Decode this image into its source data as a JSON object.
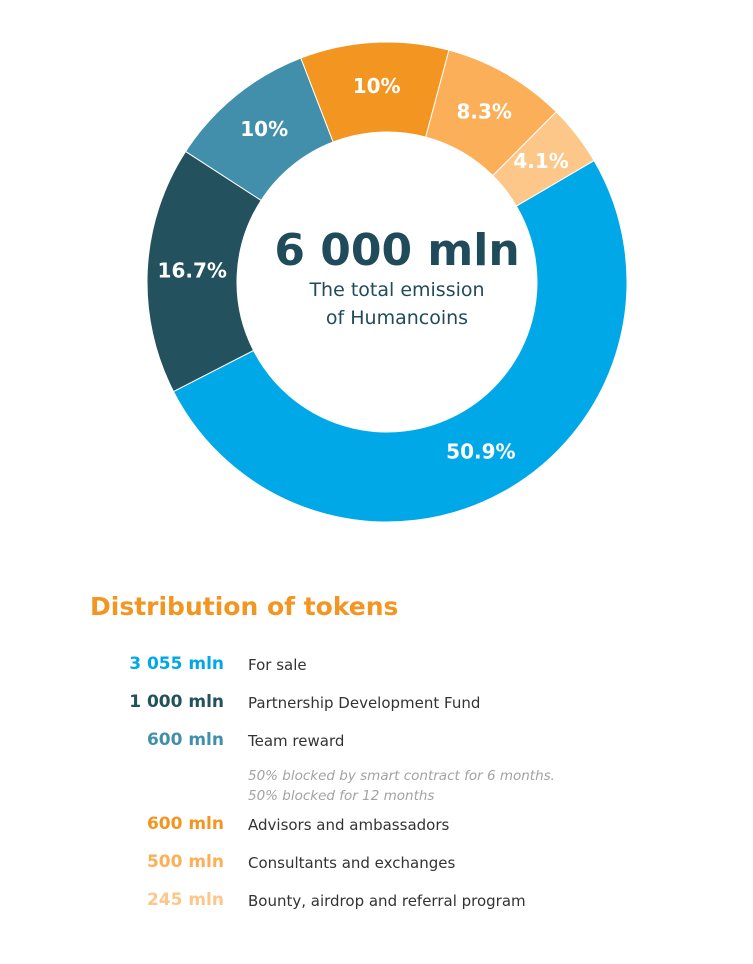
{
  "center": {
    "value": "6 000 mln",
    "line1": "The total emission",
    "line2": "of Humancoins"
  },
  "colors": {
    "for_sale": "#00a8e8",
    "partnership": "#23515e",
    "team": "#418fab",
    "advisors": "#f39521",
    "consultants": "#fbaf58",
    "bounty": "#fdc78a",
    "heading": "#f39521",
    "center_text": "#1f4b5a"
  },
  "chart_data": {
    "type": "pie",
    "categories": [
      "For sale",
      "Partnership Development Fund",
      "Team reward",
      "Advisors and ambassadors",
      "Consultants and exchanges",
      "Bounty, airdrop and referral program"
    ],
    "values": [
      50.9,
      16.7,
      10,
      10,
      8.3,
      4.1
    ],
    "labels": [
      "50.9%",
      "16.7%",
      "10%",
      "10%",
      "8.3%",
      "4.1%"
    ],
    "colors": [
      "#00a8e8",
      "#23515e",
      "#418fab",
      "#f39521",
      "#fbaf58",
      "#fdc78a"
    ],
    "donut": true,
    "title": "",
    "legend": "below"
  },
  "heading": "Distribution of tokens",
  "legend": [
    {
      "amount": "3 055 mln",
      "label": "For sale",
      "color": "#00a8e8"
    },
    {
      "amount": "1 000 mln",
      "label": "Partnership Development Fund",
      "color": "#23515e"
    },
    {
      "amount": "600 mln",
      "label": "Team reward",
      "color": "#418fab",
      "note1": "50% blocked by smart contract for 6 months.",
      "note2": "50% blocked for 12 months"
    },
    {
      "amount": "600 mln",
      "label": "Advisors and ambassadors",
      "color": "#f39521"
    },
    {
      "amount": "500 mln",
      "label": "Consultants and exchanges",
      "color": "#fbaf58"
    },
    {
      "amount": "245 mln",
      "label": "Bounty, airdrop and referral program",
      "color": "#fdc78a"
    }
  ]
}
